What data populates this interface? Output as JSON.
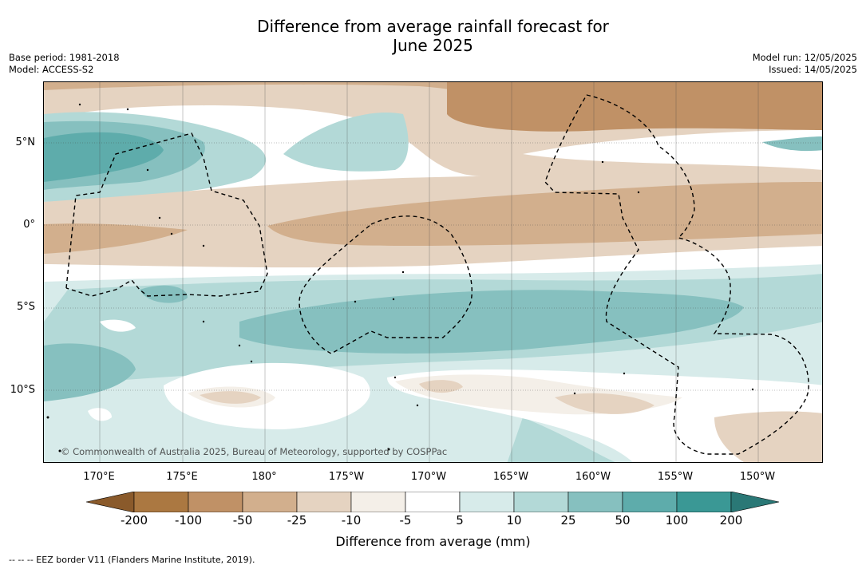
{
  "title_line1": "Difference from average rainfall forecast for",
  "title_line2": "June 2025",
  "base_period": "Base period: 1981-2018",
  "model": "Model: ACCESS-S2",
  "model_run": "Model run: 12/05/2025",
  "issued": "Issued: 14/05/2025",
  "copyright": "© Commonwealth of Australia 2025, Bureau of Meteorology, supported by COSPPac",
  "lat_labels": [
    "5°N",
    "0°",
    "5°S",
    "10°S"
  ],
  "lon_labels": [
    "170°E",
    "175°E",
    "180°",
    "175°W",
    "170°W",
    "165°W",
    "160°W",
    "155°W",
    "150°W"
  ],
  "legend": {
    "ticks": [
      "-200",
      "-100",
      "-50",
      "-25",
      "-10",
      "-5",
      "5",
      "10",
      "25",
      "50",
      "100",
      "200"
    ],
    "colors": [
      "#8a5a2b",
      "#ab7841",
      "#c09166",
      "#d2af8d",
      "#e5d3c1",
      "#f4efe8",
      "#ffffff",
      "#d7ebea",
      "#b3d9d7",
      "#86c0bf",
      "#5eacab",
      "#3a9895",
      "#2a7876"
    ],
    "label": "Difference from average (mm)"
  },
  "eez_note": "--  --  -- EEZ border V11 (Flanders Marine Institute, 2019)."
}
